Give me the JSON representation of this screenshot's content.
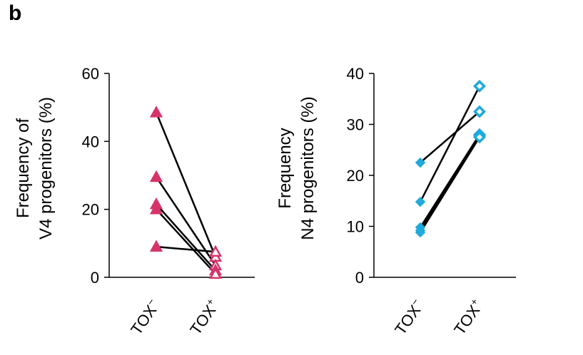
{
  "panel_label": "b",
  "chart_data": [
    {
      "type": "line",
      "categories": [
        "TOX−",
        "TOX+"
      ],
      "category_labels": [
        {
          "base": "TOX",
          "sup": "−"
        },
        {
          "base": "TOX",
          "sup": "+"
        }
      ],
      "ylabel_lines": [
        "Frequency of",
        "V4 progenitors (%)"
      ],
      "ylim": [
        0,
        60
      ],
      "yticks": [
        0,
        20,
        40,
        60
      ],
      "marker": "triangle",
      "marker_color": "#d6336c",
      "line_color": "#000000",
      "series": [
        {
          "values": [
            48.5,
            6.0
          ]
        },
        {
          "values": [
            29.5,
            3.5
          ]
        },
        {
          "values": [
            21.5,
            2.0
          ]
        },
        {
          "values": [
            20.0,
            1.0
          ]
        },
        {
          "values": [
            9.0,
            7.5
          ]
        }
      ]
    },
    {
      "type": "line",
      "categories": [
        "TOX−",
        "TOX+"
      ],
      "category_labels": [
        {
          "base": "TOX",
          "sup": "−"
        },
        {
          "base": "TOX",
          "sup": "+"
        }
      ],
      "ylabel_lines": [
        "Frequency",
        "N4 progenitors (%)"
      ],
      "ylim": [
        0,
        40
      ],
      "yticks": [
        0,
        10,
        20,
        30,
        40
      ],
      "marker": "diamond",
      "marker_color": "#1fa9dc",
      "line_color": "#000000",
      "series": [
        {
          "values": [
            22.5,
            32.5
          ]
        },
        {
          "values": [
            14.8,
            37.5
          ]
        },
        {
          "values": [
            9.8,
            28.0
          ]
        },
        {
          "values": [
            9.2,
            27.8
          ]
        },
        {
          "values": [
            8.8,
            27.5
          ]
        }
      ]
    }
  ]
}
